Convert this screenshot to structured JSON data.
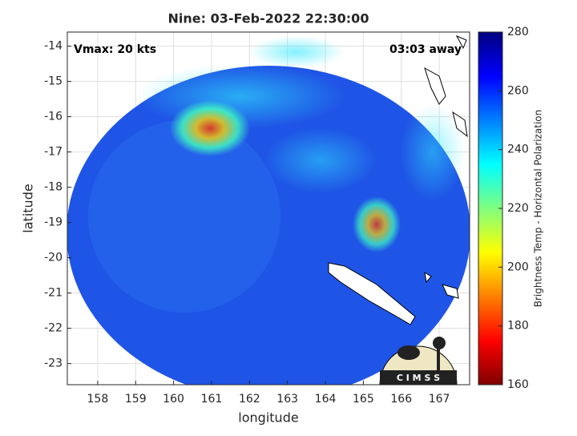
{
  "title": "Nine: 03-Feb-2022 22:30:00",
  "annotations": {
    "vmax": "Vmax: 20 kts",
    "time_away": "03:03 away"
  },
  "x_axis": {
    "label": "longitude",
    "lim": [
      157.2,
      167.8
    ],
    "ticks": [
      158,
      159,
      160,
      161,
      162,
      163,
      164,
      165,
      166,
      167
    ]
  },
  "y_axis": {
    "label": "latitude",
    "lim": [
      -23.6,
      -13.6
    ],
    "ticks": [
      -14,
      -15,
      -16,
      -17,
      -18,
      -19,
      -20,
      -21,
      -22,
      -23
    ]
  },
  "grid": true,
  "colorbar": {
    "label": "Brightness Temp - Horizontal Polarization",
    "lim": [
      160,
      280
    ],
    "ticks": [
      160,
      180,
      200,
      220,
      240,
      260,
      280
    ]
  },
  "logo": {
    "text": "C I M S S"
  }
}
